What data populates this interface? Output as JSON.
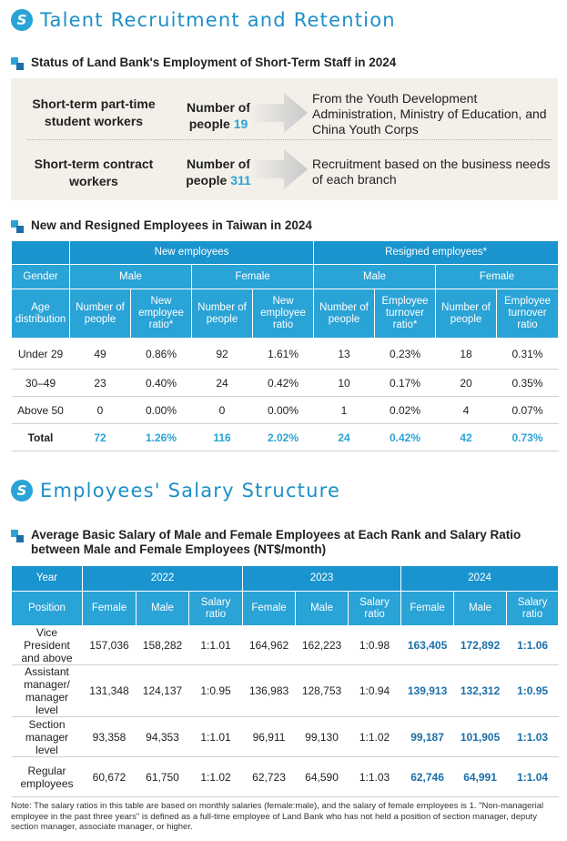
{
  "section1": {
    "title": "Talent Recruitment and Retention",
    "status": {
      "title": "Status of Land Bank's Employment of Short-Term Staff in 2024",
      "rows": [
        {
          "label": "Short-term part-time student workers",
          "count_prefix": "Number of people ",
          "count": "19",
          "description": "From the Youth Development Administration, Ministry of Education, and China Youth Corps"
        },
        {
          "label": "Short-term contract workers",
          "count_prefix": "Number of people ",
          "count": "311",
          "description": "Recruitment based on the business needs of each branch"
        }
      ]
    },
    "employees": {
      "title": "New and Resigned Employees in Taiwan in 2024",
      "headers": {
        "new": "New employees",
        "resigned": "Resigned employees*",
        "gender": "Gender",
        "male": "Male",
        "female": "Female",
        "age": "Age distribution",
        "num_people": "Number of people",
        "new_ratio": "New employee ratio*",
        "new_ratio_f": "New employee ratio",
        "turnover_m": "Employee turnover ratio*",
        "turnover_f": "Employee turnover ratio"
      },
      "rows": [
        {
          "age": "Under 29",
          "v": [
            "49",
            "0.86%",
            "92",
            "1.61%",
            "13",
            "0.23%",
            "18",
            "0.31%"
          ]
        },
        {
          "age": "30–49",
          "v": [
            "23",
            "0.40%",
            "24",
            "0.42%",
            "10",
            "0.17%",
            "20",
            "0.35%"
          ]
        },
        {
          "age": "Above 50",
          "v": [
            "0",
            "0.00%",
            "0",
            "0.00%",
            "1",
            "0.02%",
            "4",
            "0.07%"
          ]
        },
        {
          "age": "Total",
          "v": [
            "72",
            "1.26%",
            "116",
            "2.02%",
            "24",
            "0.42%",
            "42",
            "0.73%"
          ]
        }
      ]
    }
  },
  "section2": {
    "title": "Employees' Salary Structure",
    "salary": {
      "title": "Average Basic Salary of Male and Female Employees at Each Rank and Salary Ratio between Male and Female Employees (NT$/month)",
      "headers": {
        "year": "Year",
        "position": "Position",
        "y2022": "2022",
        "y2023": "2023",
        "y2024": "2024",
        "female": "Female",
        "male": "Male",
        "ratio": "Salary ratio"
      },
      "rows": [
        {
          "position": "Vice President and above",
          "v": [
            "157,036",
            "158,282",
            "1:1.01",
            "164,962",
            "162,223",
            "1:0.98",
            "163,405",
            "172,892",
            "1:1.06"
          ]
        },
        {
          "position": "Assistant manager/ manager level",
          "v": [
            "131,348",
            "124,137",
            "1:0.95",
            "136,983",
            "128,753",
            "1:0.94",
            "139,913",
            "132,312",
            "1:0.95"
          ]
        },
        {
          "position": "Section manager level",
          "v": [
            "93,358",
            "94,353",
            "1:1.01",
            "96,911",
            "99,130",
            "1:1.02",
            "99,187",
            "101,905",
            "1:1.03"
          ]
        },
        {
          "position": "Regular employees",
          "v": [
            "60,672",
            "61,750",
            "1:1.02",
            "62,723",
            "64,590",
            "1:1.03",
            "62,746",
            "64,991",
            "1:1.04"
          ]
        }
      ],
      "note": "Note: The salary ratios in this table are based on monthly salaries (female:male), and the salary of female employees is 1. \"Non-managerial employee in the past three years\" is defined as a full-time employee of Land Bank who has not held a position of section manager, deputy section manager, associate manager, or higher."
    }
  },
  "icons": {
    "section_logo": "land-bank-logo-icon",
    "subsection": "square-bullet-icon",
    "arrow": "right-arrow-icon"
  },
  "colors": {
    "accent": "#2aa3d6",
    "dark_accent": "#1b6fa8",
    "box_bg": "#f3f0ea"
  }
}
